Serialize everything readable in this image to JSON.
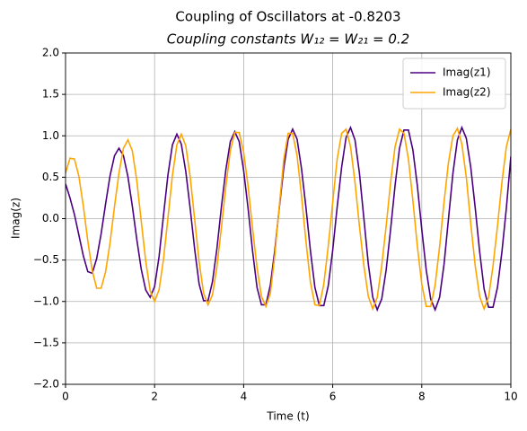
{
  "chart_data": {
    "type": "line",
    "title": "Coupling of Oscillators at  -0.8203",
    "subtitle": "Coupling constants  W₁₂ = W₂₁ = 0.2",
    "x_label": "Time (t)",
    "y_label": "Imag(z)",
    "x": [
      0,
      0.1,
      0.2,
      0.3,
      0.4,
      0.5,
      0.6,
      0.7,
      0.8,
      0.9,
      1,
      1.1,
      1.2,
      1.3,
      1.4,
      1.5,
      1.6,
      1.7,
      1.8,
      1.9,
      2,
      2.1,
      2.2,
      2.3,
      2.4,
      2.5,
      2.6,
      2.7,
      2.8,
      2.9,
      3,
      3.1,
      3.2,
      3.3,
      3.4,
      3.5,
      3.6,
      3.7,
      3.8,
      3.9,
      4,
      4.1,
      4.2,
      4.3,
      4.4,
      4.5,
      4.6,
      4.7,
      4.8,
      4.9,
      5,
      5.1,
      5.2,
      5.3,
      5.4,
      5.5,
      5.6,
      5.7,
      5.8,
      5.9,
      6,
      6.1,
      6.2,
      6.3,
      6.4,
      6.5,
      6.6,
      6.7,
      6.8,
      6.9,
      7,
      7.1,
      7.2,
      7.3,
      7.4,
      7.5,
      7.6,
      7.7,
      7.8,
      7.9,
      8,
      8.1,
      8.2,
      8.3,
      8.4,
      8.5,
      8.6,
      8.7,
      8.8,
      8.9,
      9,
      9.1,
      9.2,
      9.3,
      9.4,
      9.5,
      9.6,
      9.7,
      9.8,
      9.9,
      10
    ],
    "series": [
      {
        "name": "Imag(z1)",
        "color": "#4b0082",
        "values": [
          0.42,
          0.25,
          0.05,
          -0.2,
          -0.45,
          -0.64,
          -0.66,
          -0.48,
          -0.18,
          0.18,
          0.52,
          0.76,
          0.85,
          0.76,
          0.51,
          0.15,
          -0.25,
          -0.61,
          -0.86,
          -0.95,
          -0.82,
          -0.46,
          0.04,
          0.53,
          0.89,
          1.02,
          0.9,
          0.57,
          0.12,
          -0.37,
          -0.79,
          -0.99,
          -0.99,
          -0.76,
          -0.36,
          0.14,
          0.59,
          0.93,
          1.05,
          0.93,
          0.58,
          0.12,
          -0.39,
          -0.83,
          -1.04,
          -1.04,
          -0.8,
          -0.38,
          0.13,
          0.61,
          0.96,
          1.08,
          0.96,
          0.6,
          0.13,
          -0.39,
          -0.83,
          -1.05,
          -1.05,
          -0.81,
          -0.38,
          0.14,
          0.62,
          0.98,
          1.1,
          0.95,
          0.55,
          0.0,
          -0.55,
          -0.95,
          -1.1,
          -0.97,
          -0.62,
          -0.13,
          0.4,
          0.85,
          1.07,
          1.07,
          0.83,
          0.4,
          -0.13,
          -0.62,
          -0.97,
          -1.1,
          -0.95,
          -0.55,
          0.0,
          0.55,
          0.95,
          1.1,
          0.97,
          0.62,
          0.13,
          -0.4,
          -0.85,
          -1.07,
          -1.07,
          -0.83,
          -0.4,
          0.13,
          0.75
        ]
      },
      {
        "name": "Imag(z2)",
        "color": "#ffa500",
        "values": [
          0.55,
          0.73,
          0.72,
          0.51,
          0.15,
          -0.27,
          -0.63,
          -0.84,
          -0.84,
          -0.64,
          -0.29,
          0.15,
          0.55,
          0.85,
          0.95,
          0.82,
          0.46,
          -0.03,
          -0.51,
          -0.87,
          -1.0,
          -0.86,
          -0.49,
          0.01,
          0.52,
          0.89,
          1.02,
          0.88,
          0.5,
          -0.01,
          -0.52,
          -0.9,
          -1.04,
          -0.92,
          -0.58,
          -0.11,
          0.39,
          0.82,
          1.04,
          1.04,
          0.8,
          0.39,
          -0.12,
          -0.59,
          -0.94,
          -1.06,
          -0.9,
          -0.44,
          0.15,
          0.71,
          1.03,
          1.03,
          0.76,
          0.27,
          -0.28,
          -0.77,
          -1.04,
          -1.05,
          -0.79,
          -0.33,
          0.2,
          0.72,
          1.03,
          1.08,
          0.87,
          0.44,
          -0.09,
          -0.57,
          -0.94,
          -1.09,
          -0.95,
          -0.57,
          -0.09,
          0.44,
          0.87,
          1.08,
          1.03,
          0.72,
          0.22,
          -0.33,
          -0.79,
          -1.06,
          -1.06,
          -0.8,
          -0.34,
          0.2,
          0.68,
          1.0,
          1.09,
          0.9,
          0.5,
          -0.06,
          -0.57,
          -0.94,
          -1.09,
          -0.95,
          -0.57,
          -0.09,
          0.44,
          0.87,
          1.08
        ]
      }
    ],
    "xlim": [
      0,
      10
    ],
    "xticks": [
      0,
      2,
      4,
      6,
      8,
      10
    ],
    "ylim": [
      -2,
      2
    ],
    "yticks": [
      {
        "value": -2,
        "label": "−2.0"
      },
      {
        "value": -1.5,
        "label": "−1.5"
      },
      {
        "value": -1,
        "label": "−1.0"
      },
      {
        "value": -0.5,
        "label": "−0.5"
      },
      {
        "value": 0,
        "label": "0.0"
      },
      0.5,
      {
        "value": 1,
        "label": "1.0"
      },
      1.5,
      {
        "value": 2,
        "label": "2.0"
      }
    ],
    "grid": true,
    "legend": "upper right"
  }
}
